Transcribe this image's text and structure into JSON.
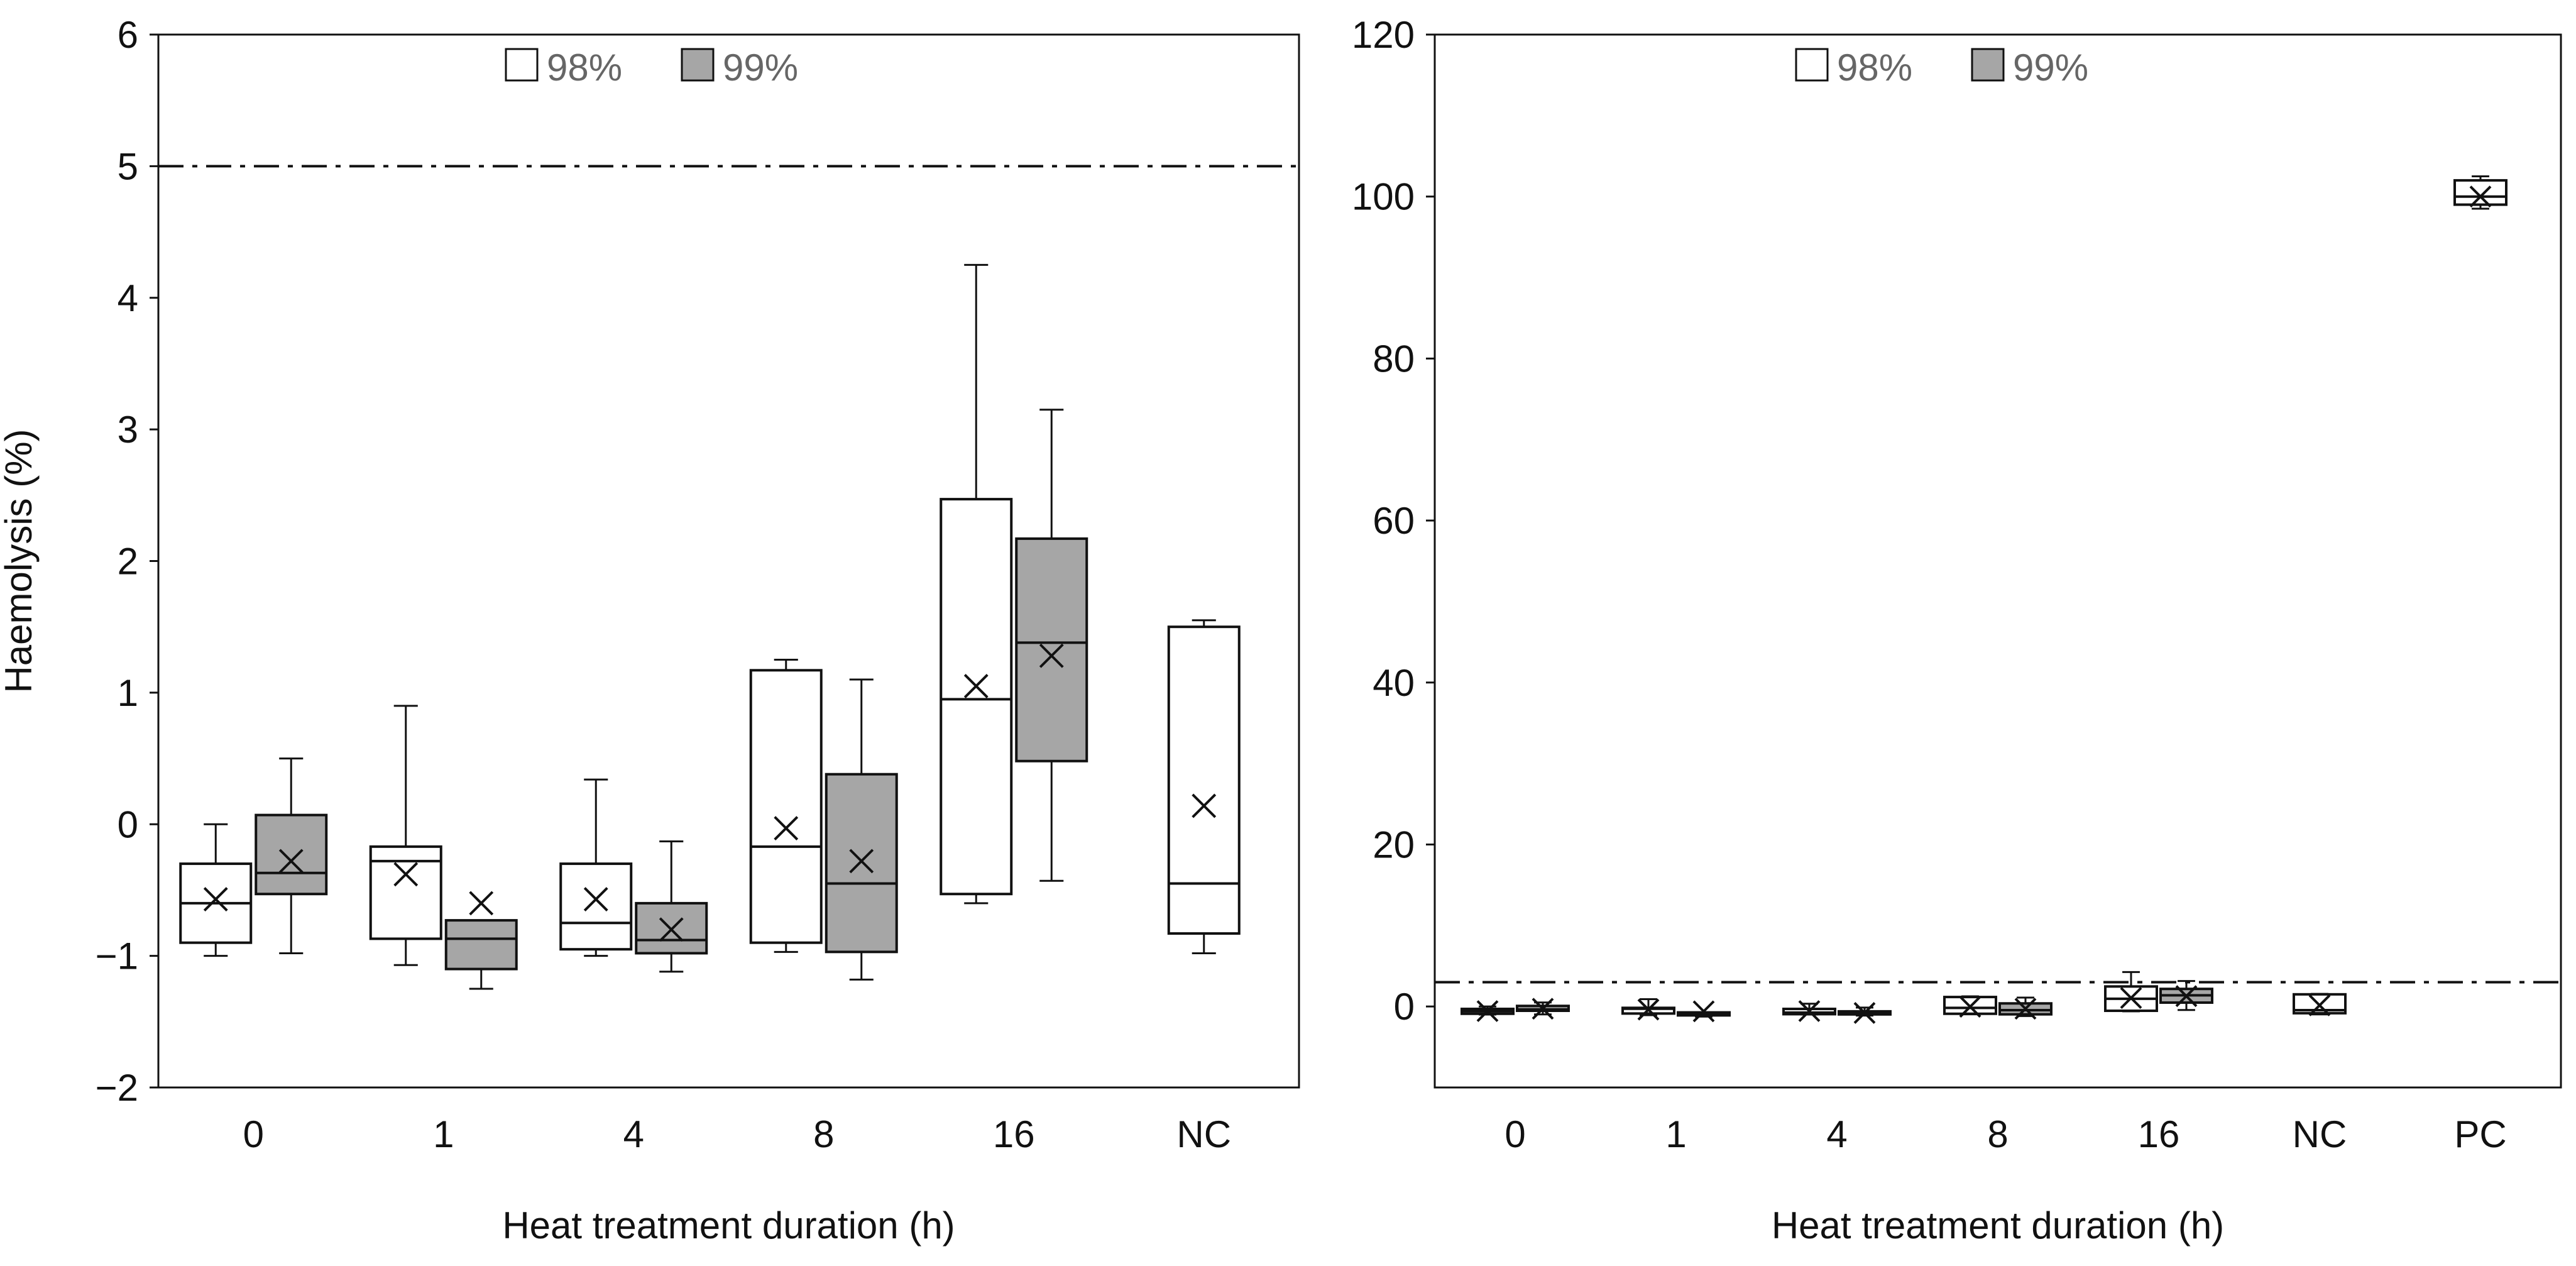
{
  "colors": {
    "white_box": "#ffffff",
    "grey_box": "#a6a6a6",
    "stroke": "#111111"
  },
  "legend": [
    {
      "label": "98%",
      "color": "#ffffff"
    },
    {
      "label": "99%",
      "color": "#a6a6a6"
    }
  ],
  "chart_data": [
    {
      "type": "box",
      "title": "",
      "xlabel": "Heat treatment duration (h)",
      "ylabel": "Haemolysis (%)",
      "ylim": [
        -2,
        6
      ],
      "yticks": [
        "−2",
        "−1",
        "0",
        "1",
        "2",
        "3",
        "4",
        "5",
        "6"
      ],
      "threshold": 5,
      "categories": [
        "0",
        "1",
        "4",
        "8",
        "16",
        "NC"
      ],
      "series": [
        {
          "name": "98%",
          "boxes": [
            {
              "category": "0",
              "min": -1.0,
              "q1": -0.9,
              "median": -0.6,
              "q3": -0.3,
              "max": 0.0,
              "mean": -0.57
            },
            {
              "category": "1",
              "min": -1.07,
              "q1": -0.87,
              "median": -0.28,
              "q3": -0.17,
              "max": 0.9,
              "mean": -0.38
            },
            {
              "category": "4",
              "min": -1.0,
              "q1": -0.95,
              "median": -0.75,
              "q3": -0.3,
              "max": 0.34,
              "mean": -0.57
            },
            {
              "category": "8",
              "min": -0.97,
              "q1": -0.9,
              "median": -0.17,
              "q3": 1.17,
              "max": 1.25,
              "mean": -0.03
            },
            {
              "category": "16",
              "min": -0.6,
              "q1": -0.53,
              "median": 0.95,
              "q3": 2.47,
              "max": 4.25,
              "mean": 1.05
            },
            {
              "category": "NC",
              "min": -0.98,
              "q1": -0.83,
              "median": -0.45,
              "q3": 1.5,
              "max": 1.55,
              "mean": 0.14
            }
          ]
        },
        {
          "name": "99%",
          "boxes": [
            {
              "category": "0",
              "min": -0.98,
              "q1": -0.53,
              "median": -0.37,
              "q3": 0.07,
              "max": 0.5,
              "mean": -0.28
            },
            {
              "category": "1",
              "min": -1.25,
              "q1": -1.1,
              "median": -0.87,
              "q3": -0.73,
              "max": -0.73,
              "mean": -0.6
            },
            {
              "category": "4",
              "min": -1.12,
              "q1": -0.98,
              "median": -0.88,
              "q3": -0.6,
              "max": -0.13,
              "mean": -0.8
            },
            {
              "category": "8",
              "min": -1.18,
              "q1": -0.97,
              "median": -0.45,
              "q3": 0.38,
              "max": 1.1,
              "mean": -0.28
            },
            {
              "category": "16",
              "min": -0.43,
              "q1": 0.48,
              "median": 1.38,
              "q3": 2.17,
              "max": 3.15,
              "mean": 1.28
            }
          ]
        }
      ]
    },
    {
      "type": "box",
      "title": "",
      "xlabel": "Heat treatment duration (h)",
      "ylabel": "",
      "ylim": [
        -10,
        120
      ],
      "yticks": [
        "0",
        "20",
        "40",
        "60",
        "80",
        "100",
        "120"
      ],
      "threshold": 3,
      "categories": [
        "0",
        "1",
        "4",
        "8",
        "16",
        "NC",
        "PC"
      ],
      "series": [
        {
          "name": "98%",
          "boxes": [
            {
              "category": "0",
              "min": -1.0,
              "q1": -0.9,
              "median": -0.6,
              "q3": -0.3,
              "max": 0.0,
              "mean": -0.57
            },
            {
              "category": "1",
              "min": -1.07,
              "q1": -0.87,
              "median": -0.28,
              "q3": -0.17,
              "max": 0.9,
              "mean": -0.38
            },
            {
              "category": "4",
              "min": -1.0,
              "q1": -0.95,
              "median": -0.75,
              "q3": -0.3,
              "max": 0.34,
              "mean": -0.57
            },
            {
              "category": "8",
              "min": -0.97,
              "q1": -0.9,
              "median": -0.17,
              "q3": 1.17,
              "max": 1.25,
              "mean": -0.03
            },
            {
              "category": "16",
              "min": -0.6,
              "q1": -0.53,
              "median": 0.95,
              "q3": 2.47,
              "max": 4.25,
              "mean": 1.05
            },
            {
              "category": "NC",
              "min": -0.98,
              "q1": -0.83,
              "median": -0.45,
              "q3": 1.5,
              "max": 1.55,
              "mean": 0.14
            },
            {
              "category": "PC",
              "min": 98.5,
              "q1": 99.0,
              "median": 100.0,
              "q3": 102.0,
              "max": 102.5,
              "mean": 100.0
            }
          ]
        },
        {
          "name": "99%",
          "boxes": [
            {
              "category": "0",
              "min": -0.98,
              "q1": -0.53,
              "median": -0.37,
              "q3": 0.07,
              "max": 0.5,
              "mean": -0.28
            },
            {
              "category": "1",
              "min": -1.25,
              "q1": -1.1,
              "median": -0.87,
              "q3": -0.73,
              "max": -0.73,
              "mean": -0.6
            },
            {
              "category": "4",
              "min": -1.12,
              "q1": -0.98,
              "median": -0.88,
              "q3": -0.6,
              "max": -0.13,
              "mean": -0.8
            },
            {
              "category": "8",
              "min": -1.18,
              "q1": -0.97,
              "median": -0.45,
              "q3": 0.38,
              "max": 1.1,
              "mean": -0.28
            },
            {
              "category": "16",
              "min": -0.43,
              "q1": 0.48,
              "median": 1.38,
              "q3": 2.17,
              "max": 3.15,
              "mean": 1.28
            }
          ]
        }
      ]
    }
  ]
}
